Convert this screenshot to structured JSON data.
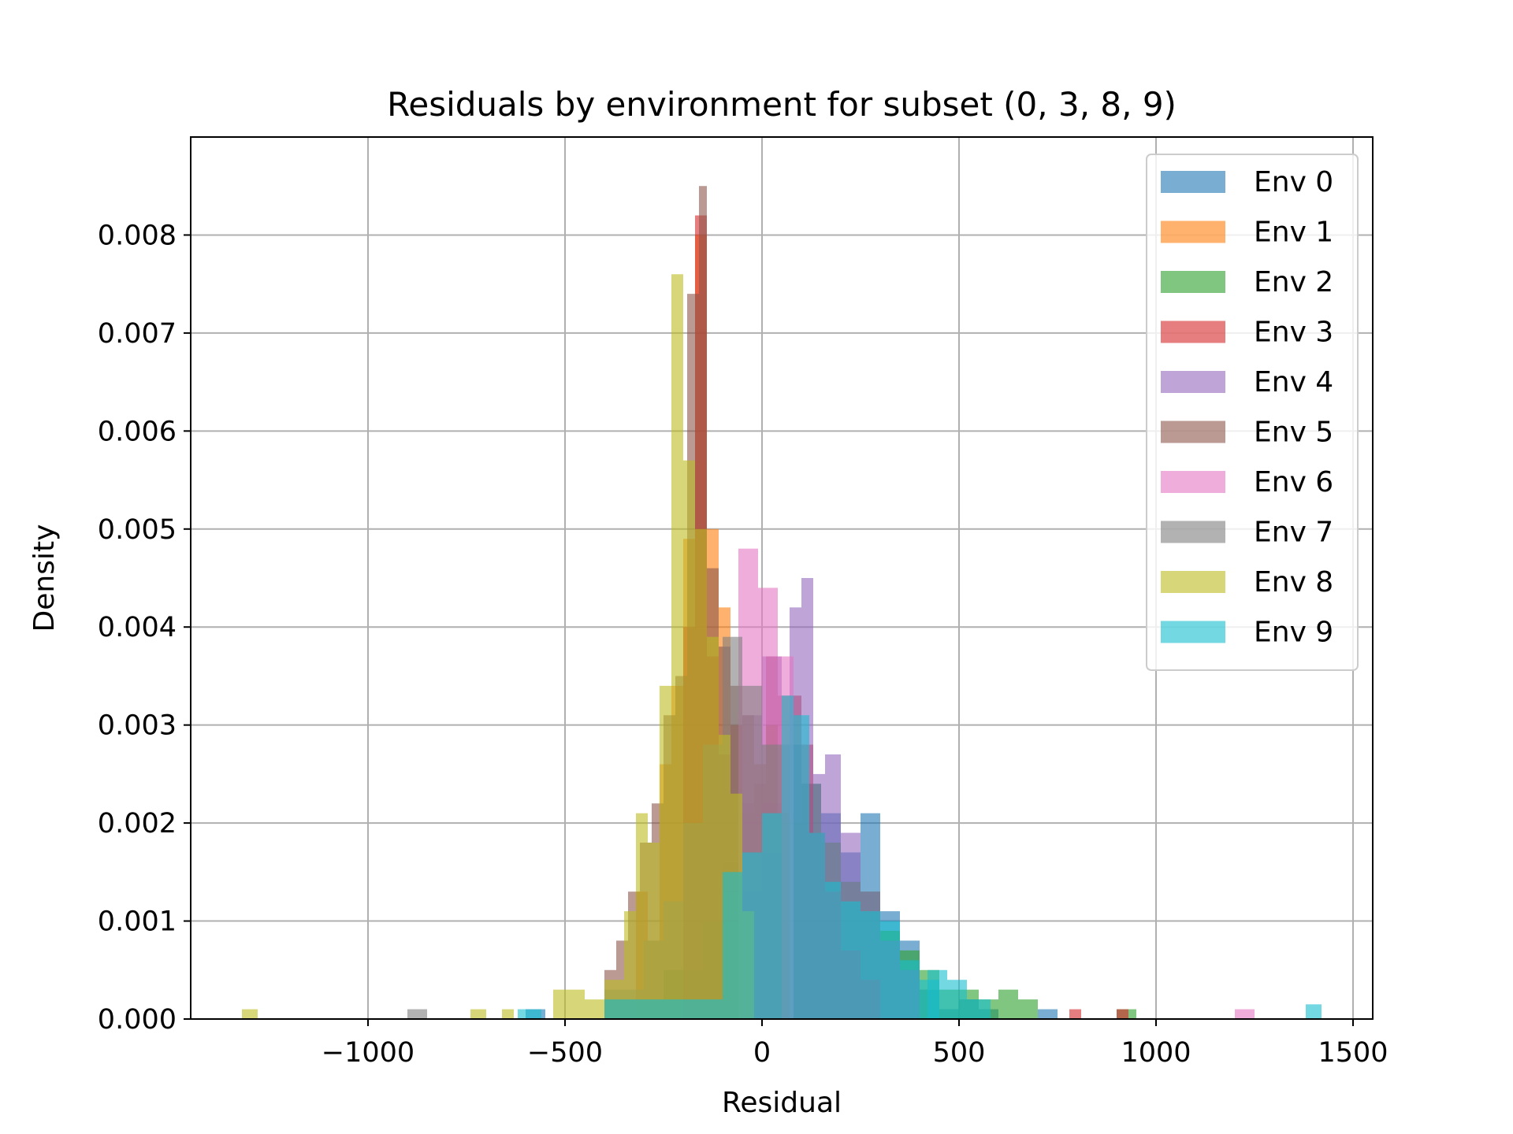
{
  "chart_data": {
    "type": "histogram",
    "title": "Residuals by environment for subset (0, 3, 8, 9)",
    "xlabel": "Residual",
    "ylabel": "Density",
    "xlim": [
      -1450,
      1550
    ],
    "ylim": [
      0,
      0.009
    ],
    "x_ticks": [
      -1000,
      -500,
      0,
      500,
      1000,
      1500
    ],
    "x_tick_labels": [
      "−1000",
      "−500",
      "0",
      "500",
      "1000",
      "1500"
    ],
    "y_ticks": [
      0,
      0.001,
      0.002,
      0.003,
      0.004,
      0.005,
      0.006,
      0.007,
      0.008
    ],
    "y_tick_labels": [
      "0.000",
      "0.001",
      "0.002",
      "0.003",
      "0.004",
      "0.005",
      "0.006",
      "0.007",
      "0.008"
    ],
    "grid": true,
    "legend_position": "top-right",
    "bar_opacity": 0.6,
    "series": [
      {
        "name": "Env 0",
        "color": "#1f77b4",
        "bins": [
          [
            -600,
            -550,
            0.0001
          ],
          [
            -100,
            -50,
            0.0016
          ],
          [
            -50,
            0,
            0.0017
          ],
          [
            0,
            50,
            0.0022
          ],
          [
            50,
            100,
            0.0028
          ],
          [
            100,
            150,
            0.0024
          ],
          [
            150,
            200,
            0.0021
          ],
          [
            200,
            250,
            0.0017
          ],
          [
            250,
            300,
            0.0021
          ],
          [
            300,
            350,
            0.0011
          ],
          [
            350,
            400,
            0.0008
          ],
          [
            400,
            450,
            0.0003
          ],
          [
            450,
            500,
            0.0001
          ],
          [
            500,
            550,
            0.0002
          ],
          [
            550,
            600,
            0.0001
          ],
          [
            700,
            750,
            0.0001
          ]
        ]
      },
      {
        "name": "Env 1",
        "color": "#ff7f0e",
        "bins": [
          [
            -320,
            -290,
            0.0013
          ],
          [
            -290,
            -260,
            0.0008
          ],
          [
            -260,
            -230,
            0.0026
          ],
          [
            -230,
            -200,
            0.0034
          ],
          [
            -200,
            -170,
            0.0049
          ],
          [
            -170,
            -140,
            0.008
          ],
          [
            -140,
            -110,
            0.005
          ],
          [
            -110,
            -80,
            0.0042
          ],
          [
            -80,
            -50,
            0.003
          ],
          [
            -50,
            -20,
            0.0021
          ],
          [
            -20,
            10,
            0.0024
          ],
          [
            10,
            40,
            0.0028
          ],
          [
            40,
            70,
            0.0021
          ]
        ]
      },
      {
        "name": "Env 2",
        "color": "#2ca02c",
        "bins": [
          [
            -400,
            -250,
            0.0002
          ],
          [
            -250,
            -150,
            0.0005
          ],
          [
            -150,
            -100,
            0.001
          ],
          [
            -100,
            0,
            0.0013
          ],
          [
            0,
            50,
            0.0017
          ],
          [
            50,
            100,
            0.002
          ],
          [
            100,
            150,
            0.0024
          ],
          [
            150,
            200,
            0.0018
          ],
          [
            200,
            250,
            0.0014
          ],
          [
            250,
            300,
            0.0013
          ],
          [
            300,
            350,
            0.0009
          ],
          [
            350,
            400,
            0.0007
          ],
          [
            400,
            450,
            0.0005
          ],
          [
            450,
            500,
            0.0003
          ],
          [
            500,
            550,
            0.0003
          ],
          [
            550,
            600,
            0.0002
          ],
          [
            600,
            650,
            0.0003
          ],
          [
            650,
            700,
            0.0002
          ],
          [
            900,
            950,
            0.0001
          ]
        ]
      },
      {
        "name": "Env 3",
        "color": "#d62728",
        "bins": [
          [
            -200,
            -170,
            0.004
          ],
          [
            -170,
            -140,
            0.0082
          ],
          [
            -140,
            -110,
            0.0037
          ],
          [
            -110,
            -80,
            0.0027
          ],
          [
            -80,
            -50,
            0.003
          ],
          [
            -50,
            -20,
            0.0022
          ],
          [
            -20,
            10,
            0.0024
          ],
          [
            10,
            40,
            0.0037
          ],
          [
            40,
            70,
            0.0033
          ],
          [
            70,
            100,
            0.0033
          ],
          [
            100,
            130,
            0.0028
          ],
          [
            130,
            160,
            0.0019
          ],
          [
            160,
            200,
            0.0013
          ],
          [
            200,
            250,
            0.0007
          ],
          [
            250,
            300,
            0.0004
          ],
          [
            780,
            810,
            0.0001
          ],
          [
            900,
            930,
            0.0001
          ]
        ]
      },
      {
        "name": "Env 4",
        "color": "#9467bd",
        "bins": [
          [
            -50,
            0,
            0.0031
          ],
          [
            0,
            50,
            0.0037
          ],
          [
            70,
            100,
            0.0042
          ],
          [
            100,
            130,
            0.0045
          ],
          [
            130,
            160,
            0.0025
          ],
          [
            160,
            200,
            0.0027
          ],
          [
            200,
            250,
            0.0019
          ],
          [
            250,
            300,
            0.0013
          ],
          [
            300,
            350,
            0.0008
          ],
          [
            350,
            400,
            0.0005
          ]
        ]
      },
      {
        "name": "Env 5",
        "color": "#8c564b",
        "bins": [
          [
            -400,
            -370,
            0.0005
          ],
          [
            -370,
            -340,
            0.0008
          ],
          [
            -340,
            -310,
            0.0013
          ],
          [
            -310,
            -280,
            0.0018
          ],
          [
            -280,
            -250,
            0.0022
          ],
          [
            -250,
            -220,
            0.0031
          ],
          [
            -220,
            -190,
            0.0035
          ],
          [
            -190,
            -160,
            0.0074
          ],
          [
            -160,
            -140,
            0.0085
          ],
          [
            -140,
            -110,
            0.0046
          ],
          [
            -110,
            -80,
            0.0038
          ],
          [
            -80,
            -50,
            0.0034
          ],
          [
            -50,
            -20,
            0.0031
          ],
          [
            -20,
            10,
            0.0026
          ],
          [
            10,
            40,
            0.003
          ],
          [
            40,
            70,
            0.0021
          ]
        ]
      },
      {
        "name": "Env 6",
        "color": "#e377c2",
        "bins": [
          [
            -60,
            -10,
            0.0048
          ],
          [
            -10,
            40,
            0.0044
          ],
          [
            40,
            80,
            0.0037
          ],
          [
            1200,
            1250,
            0.0001
          ]
        ]
      },
      {
        "name": "Env 7",
        "color": "#7f7f7f",
        "bins": [
          [
            -900,
            -850,
            0.0001
          ],
          [
            -400,
            -300,
            0.0003
          ],
          [
            -300,
            -250,
            0.0008
          ],
          [
            -250,
            -200,
            0.0012
          ],
          [
            -200,
            -150,
            0.002
          ],
          [
            -150,
            -100,
            0.0028
          ],
          [
            -100,
            -50,
            0.0039
          ],
          [
            -50,
            0,
            0.0034
          ],
          [
            0,
            50,
            0.0028
          ]
        ]
      },
      {
        "name": "Env 8",
        "color": "#bcbd22",
        "bins": [
          [
            -1320,
            -1280,
            0.0001
          ],
          [
            -740,
            -700,
            0.0001
          ],
          [
            -660,
            -630,
            0.0001
          ],
          [
            -530,
            -450,
            0.0003
          ],
          [
            -450,
            -400,
            0.0002
          ],
          [
            -400,
            -350,
            0.0004
          ],
          [
            -350,
            -320,
            0.0011
          ],
          [
            -320,
            -290,
            0.0021
          ],
          [
            -290,
            -260,
            0.0018
          ],
          [
            -260,
            -230,
            0.0034
          ],
          [
            -230,
            -200,
            0.0076
          ],
          [
            -200,
            -170,
            0.0057
          ],
          [
            -170,
            -140,
            0.005
          ],
          [
            -140,
            -110,
            0.0039
          ],
          [
            -110,
            -80,
            0.0029
          ],
          [
            -80,
            -50,
            0.0023
          ],
          [
            -50,
            -20,
            0.0011
          ]
        ]
      },
      {
        "name": "Env 9",
        "color": "#17becf",
        "bins": [
          [
            -620,
            -560,
            0.0001
          ],
          [
            -400,
            -100,
            0.0002
          ],
          [
            -100,
            -50,
            0.0015
          ],
          [
            -50,
            0,
            0.0017
          ],
          [
            0,
            50,
            0.0021
          ],
          [
            50,
            80,
            0.0033
          ],
          [
            80,
            120,
            0.0031
          ],
          [
            120,
            160,
            0.0019
          ],
          [
            160,
            200,
            0.0014
          ],
          [
            200,
            250,
            0.0012
          ],
          [
            250,
            300,
            0.0011
          ],
          [
            300,
            350,
            0.001
          ],
          [
            350,
            400,
            0.0006
          ],
          [
            400,
            450,
            0.0004
          ],
          [
            420,
            470,
            0.0005
          ],
          [
            470,
            520,
            0.0004
          ],
          [
            520,
            580,
            0.0002
          ],
          [
            1380,
            1420,
            0.00015
          ]
        ]
      }
    ]
  }
}
